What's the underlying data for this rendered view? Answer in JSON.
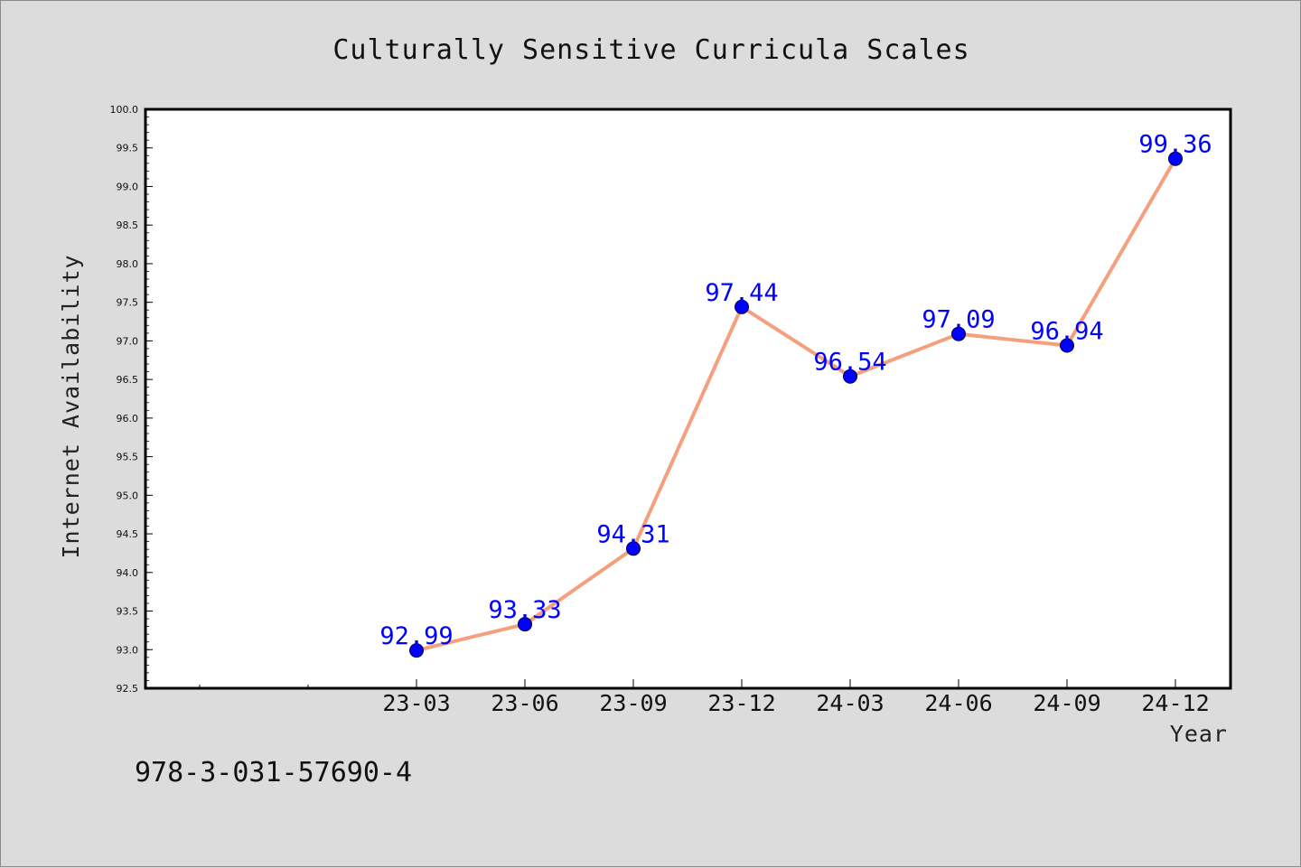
{
  "figure": {
    "footer_text": "978-3-031-57690-4"
  },
  "colors": {
    "background": "#dcdcdc",
    "plot_background": "#ffffff",
    "line": "#f4a07e",
    "marker": "#0000ff",
    "data_label": "#0000ff"
  },
  "chart_data": {
    "type": "line",
    "title": "Culturally Sensitive Curricula Scales",
    "xlabel": "Year",
    "ylabel": "Internet Availability",
    "categories": [
      "23-03",
      "23-06",
      "23-09",
      "23-12",
      "24-03",
      "24-06",
      "24-09",
      "24-12"
    ],
    "series": [
      {
        "values": [
          92.99,
          93.33,
          94.31,
          97.44,
          96.54,
          97.09,
          96.94,
          99.36
        ],
        "labels": [
          "92.99",
          "93.33",
          "94.31",
          "97.44",
          "96.54",
          "97.09",
          "96.94",
          "99.36"
        ],
        "marker": "circle"
      }
    ],
    "ylim": [
      92.5,
      100.0
    ],
    "yticks": [
      "92.5",
      "93.0",
      "93.5",
      "94.0",
      "94.5",
      "95.0",
      "95.5",
      "96.0",
      "96.5",
      "97.0",
      "97.5",
      "98.0",
      "98.5",
      "99.0",
      "99.5",
      "100.0"
    ],
    "grid": false,
    "legend": "none"
  }
}
